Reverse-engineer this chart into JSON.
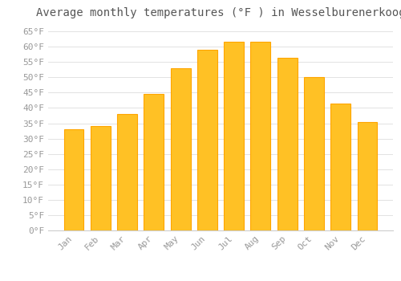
{
  "title": "Average monthly temperatures (°F ) in Wesselburenerkoog",
  "months": [
    "Jan",
    "Feb",
    "Mar",
    "Apr",
    "May",
    "Jun",
    "Jul",
    "Aug",
    "Sep",
    "Oct",
    "Nov",
    "Dec"
  ],
  "values": [
    33,
    34,
    38,
    44.5,
    53,
    59,
    61.5,
    61.5,
    56.5,
    50,
    41.5,
    35.5
  ],
  "bar_color": "#FFC125",
  "bar_edge_color": "#FFA500",
  "background_color": "#FFFFFF",
  "grid_color": "#DDDDDD",
  "ylim": [
    0,
    67
  ],
  "yticks": [
    0,
    5,
    10,
    15,
    20,
    25,
    30,
    35,
    40,
    45,
    50,
    55,
    60,
    65
  ],
  "ytick_labels": [
    "0°F",
    "5°F",
    "10°F",
    "15°F",
    "20°F",
    "25°F",
    "30°F",
    "35°F",
    "40°F",
    "45°F",
    "50°F",
    "55°F",
    "60°F",
    "65°F"
  ],
  "title_fontsize": 10,
  "tick_fontsize": 8,
  "tick_color": "#999999",
  "title_color": "#555555"
}
